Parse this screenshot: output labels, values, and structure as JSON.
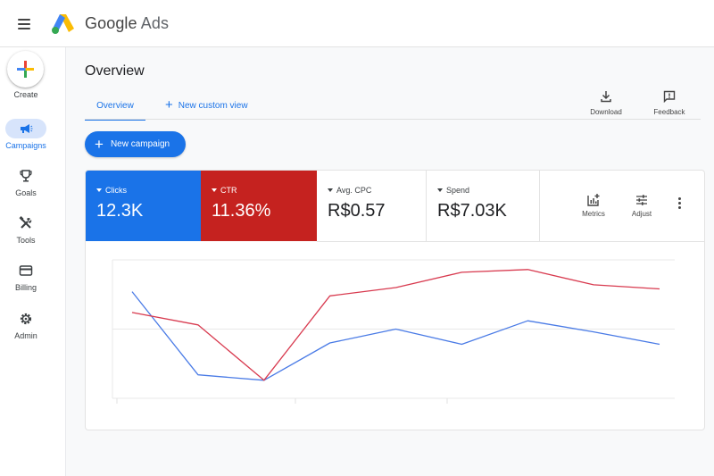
{
  "app": {
    "brand": "Google",
    "product": "Ads"
  },
  "sidebar": {
    "create_label": "Create",
    "items": [
      {
        "label": "Campaigns",
        "icon": "megaphone-icon",
        "active": true
      },
      {
        "label": "Goals",
        "icon": "trophy-icon",
        "active": false
      },
      {
        "label": "Tools",
        "icon": "tools-icon",
        "active": false
      },
      {
        "label": "Billing",
        "icon": "credit-card-icon",
        "active": false
      },
      {
        "label": "Admin",
        "icon": "gear-icon",
        "active": false
      }
    ]
  },
  "page": {
    "title": "Overview",
    "tabs": [
      {
        "label": "Overview",
        "active": true
      },
      {
        "label": "New custom view",
        "active": false
      }
    ],
    "actions": {
      "download_label": "Download",
      "feedback_label": "Feedback"
    },
    "new_campaign_label": "New campaign"
  },
  "metrics": [
    {
      "name": "Clicks",
      "value": "12.3K",
      "color": "#1a73e8",
      "selected": true
    },
    {
      "name": "CTR",
      "value": "11.36%",
      "color": "#c5221f",
      "selected": true
    },
    {
      "name": "Avg. CPC",
      "value": "R$0.57",
      "selected": false
    },
    {
      "name": "Spend",
      "value": "R$7.03K",
      "selected": false
    }
  ],
  "metric_tools": {
    "metrics_label": "Metrics",
    "adjust_label": "Adjust"
  },
  "chart_data": {
    "type": "line",
    "x": [
      1,
      2,
      3,
      4,
      5,
      6,
      7,
      8,
      9
    ],
    "ylim": [
      0,
      100
    ],
    "grid": true,
    "series": [
      {
        "color": "#4a7be6",
        "values": [
          77,
          17,
          13,
          40,
          50,
          39,
          56,
          48,
          39
        ]
      },
      {
        "color": "#d83a4f",
        "values": [
          62,
          53,
          13,
          74,
          80,
          91,
          93,
          82,
          79
        ]
      }
    ]
  },
  "colors": {
    "accent": "#1a73e8",
    "ctr": "#c5221f"
  }
}
